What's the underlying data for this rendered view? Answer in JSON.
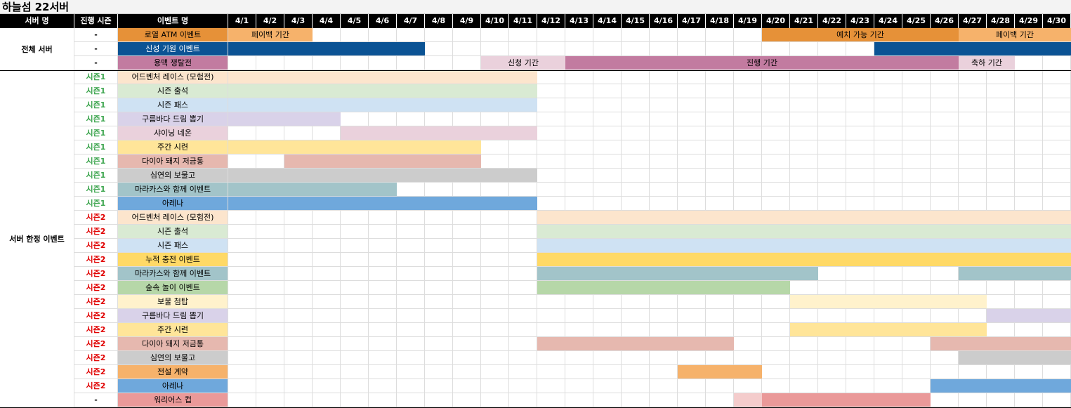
{
  "title": "하늘섬 22서버",
  "headers": {
    "server": "서버 명",
    "season": "진행 시즌",
    "event": "이벤트 명"
  },
  "days": [
    "4/1",
    "4/2",
    "4/3",
    "4/4",
    "4/5",
    "4/6",
    "4/7",
    "4/8",
    "4/9",
    "4/10",
    "4/11",
    "4/12",
    "4/13",
    "4/14",
    "4/15",
    "4/16",
    "4/17",
    "4/18",
    "4/19",
    "4/20",
    "4/21",
    "4/22",
    "4/23",
    "4/24",
    "4/25",
    "4/26",
    "4/27",
    "4/28",
    "4/29",
    "4/30"
  ],
  "groups": [
    {
      "label": "전체 서버",
      "rows": 3
    },
    {
      "label": "서버 한정 이벤트",
      "rows": 24
    }
  ],
  "season_colors": {
    "시즌1": "#38a34a",
    "시즌2": "#e00000",
    "-": "#000000"
  },
  "rows": [
    {
      "season": "-",
      "event": "로열 ATM 이벤트",
      "color": "#e69138",
      "text_color": "#000",
      "bars": [
        {
          "from": 1,
          "to": 3,
          "color": "#f6b26b",
          "label": "페이백 기간"
        },
        {
          "from": 20,
          "to": 26,
          "color": "#e69138",
          "label": "예치 가능 기간"
        },
        {
          "from": 27,
          "to": 30,
          "color": "#f6b26b",
          "label": "페이백 기간"
        }
      ]
    },
    {
      "season": "-",
      "event": "신성 기원 이벤트",
      "color": "#0b5394",
      "text_color": "#fff",
      "bars": [
        {
          "from": 1,
          "to": 7,
          "color": "#0b5394"
        },
        {
          "from": 24,
          "to": 30,
          "color": "#0b5394"
        }
      ]
    },
    {
      "season": "-",
      "event": "용맥 쟁탈전",
      "color": "#c27ba0",
      "text_color": "#000",
      "bars": [
        {
          "from": 10,
          "to": 12,
          "color": "#ead1dc",
          "label": "신청 기간"
        },
        {
          "from": 13,
          "to": 26,
          "color": "#c27ba0",
          "label": "진행 기간"
        },
        {
          "from": 27,
          "to": 28,
          "color": "#ead1dc",
          "label": "축하 기간"
        }
      ]
    },
    {
      "season": "시즌1",
      "event": "어드벤처 레이스 (모험전)",
      "color": "#fce5cd",
      "bars": [
        {
          "from": 1,
          "to": 11,
          "color": "#fce5cd"
        }
      ]
    },
    {
      "season": "시즌1",
      "event": "시즌 출석",
      "color": "#d9ead3",
      "bars": [
        {
          "from": 1,
          "to": 11,
          "color": "#d9ead3"
        }
      ]
    },
    {
      "season": "시즌1",
      "event": "시즌 패스",
      "color": "#cfe2f3",
      "bars": [
        {
          "from": 1,
          "to": 11,
          "color": "#cfe2f3"
        }
      ]
    },
    {
      "season": "시즌1",
      "event": "구름바다 드림 뽑기",
      "color": "#d9d2e9",
      "bars": [
        {
          "from": 1,
          "to": 4,
          "color": "#d9d2e9"
        }
      ]
    },
    {
      "season": "시즌1",
      "event": "샤이닝 네온",
      "color": "#ead1dc",
      "bars": [
        {
          "from": 5,
          "to": 11,
          "color": "#ead1dc"
        }
      ]
    },
    {
      "season": "시즌1",
      "event": "주간 시련",
      "color": "#ffe599",
      "bars": [
        {
          "from": 1,
          "to": 9,
          "color": "#ffe599"
        }
      ]
    },
    {
      "season": "시즌1",
      "event": "다이아 돼지 저금통",
      "color": "#e6b8af",
      "bars": [
        {
          "from": 3,
          "to": 9,
          "color": "#e6b8af"
        }
      ]
    },
    {
      "season": "시즌1",
      "event": "심연의 보물고",
      "color": "#cccccc",
      "bars": [
        {
          "from": 1,
          "to": 11,
          "color": "#cccccc"
        }
      ]
    },
    {
      "season": "시즌1",
      "event": "마라카스와 함께 이벤트",
      "color": "#a2c4c9",
      "bars": [
        {
          "from": 1,
          "to": 6,
          "color": "#a2c4c9"
        }
      ]
    },
    {
      "season": "시즌1",
      "event": "아레나",
      "color": "#6fa8dc",
      "bars": [
        {
          "from": 1,
          "to": 11,
          "color": "#6fa8dc"
        }
      ]
    },
    {
      "season": "시즌2",
      "event": "어드벤처 레이스 (모험전)",
      "color": "#fce5cd",
      "bars": [
        {
          "from": 12,
          "to": 30,
          "color": "#fce5cd"
        }
      ]
    },
    {
      "season": "시즌2",
      "event": "시즌 출석",
      "color": "#d9ead3",
      "bars": [
        {
          "from": 12,
          "to": 30,
          "color": "#d9ead3"
        }
      ]
    },
    {
      "season": "시즌2",
      "event": "시즌 패스",
      "color": "#cfe2f3",
      "bars": [
        {
          "from": 12,
          "to": 30,
          "color": "#cfe2f3"
        }
      ]
    },
    {
      "season": "시즌2",
      "event": "누적 충전 이벤트",
      "color": "#ffd966",
      "bars": [
        {
          "from": 12,
          "to": 30,
          "color": "#ffd966"
        }
      ]
    },
    {
      "season": "시즌2",
      "event": "마라카스와 함께 이벤트",
      "color": "#a2c4c9",
      "bars": [
        {
          "from": 12,
          "to": 21,
          "color": "#a2c4c9"
        },
        {
          "from": 27,
          "to": 30,
          "color": "#a2c4c9"
        }
      ]
    },
    {
      "season": "시즌2",
      "event": "숲속 놀이 이벤트",
      "color": "#b6d7a8",
      "bars": [
        {
          "from": 12,
          "to": 20,
          "color": "#b6d7a8"
        }
      ]
    },
    {
      "season": "시즌2",
      "event": "보물 첨탑",
      "color": "#fff2cc",
      "bars": [
        {
          "from": 21,
          "to": 27,
          "color": "#fff2cc"
        }
      ]
    },
    {
      "season": "시즌2",
      "event": "구름바다 드림 뽑기",
      "color": "#d9d2e9",
      "bars": [
        {
          "from": 28,
          "to": 30,
          "color": "#d9d2e9"
        }
      ]
    },
    {
      "season": "시즌2",
      "event": "주간 시련",
      "color": "#ffe599",
      "bars": [
        {
          "from": 21,
          "to": 27,
          "color": "#ffe599"
        }
      ]
    },
    {
      "season": "시즌2",
      "event": "다이아 돼지 저금통",
      "color": "#e6b8af",
      "bars": [
        {
          "from": 12,
          "to": 18,
          "color": "#e6b8af"
        },
        {
          "from": 26,
          "to": 30,
          "color": "#e6b8af"
        }
      ]
    },
    {
      "season": "시즌2",
      "event": "심연의 보물고",
      "color": "#cccccc",
      "bars": [
        {
          "from": 27,
          "to": 30,
          "color": "#cccccc"
        }
      ]
    },
    {
      "season": "시즌2",
      "event": "전설 계약",
      "color": "#f6b26b",
      "bars": [
        {
          "from": 17,
          "to": 19,
          "color": "#f6b26b"
        }
      ]
    },
    {
      "season": "시즌2",
      "event": "아레나",
      "color": "#6fa8dc",
      "bars": [
        {
          "from": 26,
          "to": 30,
          "color": "#6fa8dc"
        }
      ]
    },
    {
      "season": "-",
      "event": "워리어스 컵",
      "color": "#ea9999",
      "bars": [
        {
          "from": 19,
          "to": 19,
          "color": "#f4cccc"
        },
        {
          "from": 20,
          "to": 25,
          "color": "#ea9999"
        }
      ]
    }
  ]
}
